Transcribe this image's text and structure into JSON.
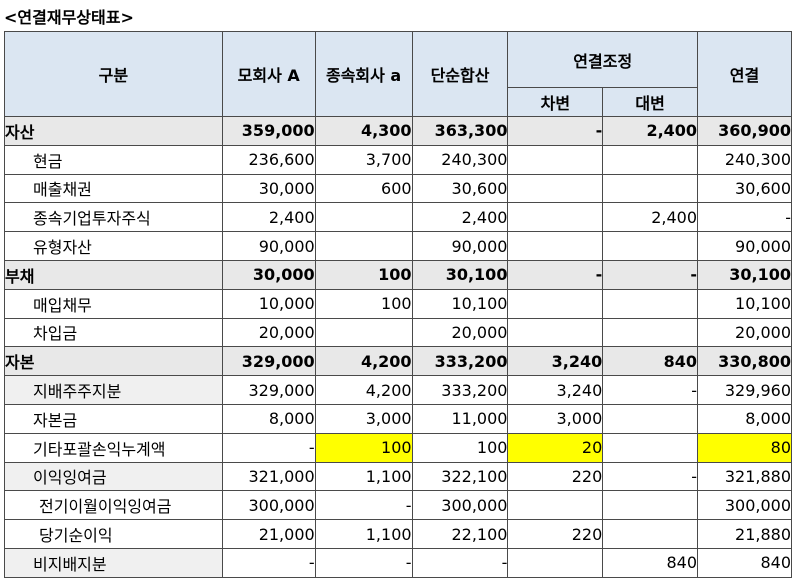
{
  "title": "<연결재무상태표>",
  "headers": {
    "category": "구분",
    "parent": "모회사 A",
    "sub": "종속회사 a",
    "simple_sum": "단순합산",
    "adjustment": "연결조정",
    "debit": "차변",
    "credit": "대변",
    "consolidated": "연결"
  },
  "rows": [
    {
      "label": "자산",
      "type": "section",
      "values": [
        "359,000",
        "4,300",
        "363,300",
        "-",
        "2,400",
        "360,900"
      ]
    },
    {
      "label": "현금",
      "type": "sub",
      "values": [
        "236,600",
        "3,700",
        "240,300",
        "",
        "",
        "240,300"
      ]
    },
    {
      "label": "매출채권",
      "type": "sub",
      "values": [
        "30,000",
        "600",
        "30,600",
        "",
        "",
        "30,600"
      ]
    },
    {
      "label": "종속기업투자주식",
      "type": "sub",
      "values": [
        "2,400",
        "",
        "2,400",
        "",
        "2,400",
        "-"
      ]
    },
    {
      "label": "유형자산",
      "type": "sub",
      "values": [
        "90,000",
        "",
        "90,000",
        "",
        "",
        "90,000"
      ]
    },
    {
      "label": "부채",
      "type": "section",
      "values": [
        "30,000",
        "100",
        "30,100",
        "-",
        "-",
        "30,100"
      ]
    },
    {
      "label": "매입채무",
      "type": "sub",
      "values": [
        "10,000",
        "100",
        "10,100",
        "",
        "",
        "10,100"
      ]
    },
    {
      "label": "차입금",
      "type": "sub",
      "values": [
        "20,000",
        "",
        "20,000",
        "",
        "",
        "20,000"
      ]
    },
    {
      "label": "자본",
      "type": "section",
      "values": [
        "329,000",
        "4,200",
        "333,200",
        "3,240",
        "840",
        "330,800"
      ]
    },
    {
      "label": "지배주주지분",
      "type": "sub-grey",
      "values": [
        "329,000",
        "4,200",
        "333,200",
        "3,240",
        "-",
        "329,960"
      ]
    },
    {
      "label": "자본금",
      "type": "sub",
      "values": [
        "8,000",
        "3,000",
        "11,000",
        "3,000",
        "",
        "8,000"
      ]
    },
    {
      "label": "기타포괄손익누계액",
      "type": "sub",
      "values": [
        "-",
        "100",
        "100",
        "20",
        "",
        "80"
      ],
      "highlight": [
        1,
        3,
        5
      ]
    },
    {
      "label": "이익잉여금",
      "type": "sub-grey",
      "values": [
        "321,000",
        "1,100",
        "322,100",
        "220",
        "-",
        "321,880"
      ]
    },
    {
      "label": "전기이월이익잉여금",
      "type": "sub2",
      "values": [
        "300,000",
        "-",
        "300,000",
        "",
        "",
        "300,000"
      ]
    },
    {
      "label": "당기순이익",
      "type": "sub2",
      "values": [
        "21,000",
        "1,100",
        "22,100",
        "220",
        "",
        "21,880"
      ]
    },
    {
      "label": "비지배지분",
      "type": "sub-grey",
      "values": [
        "-",
        "-",
        "-",
        "",
        "840",
        "840"
      ]
    }
  ]
}
